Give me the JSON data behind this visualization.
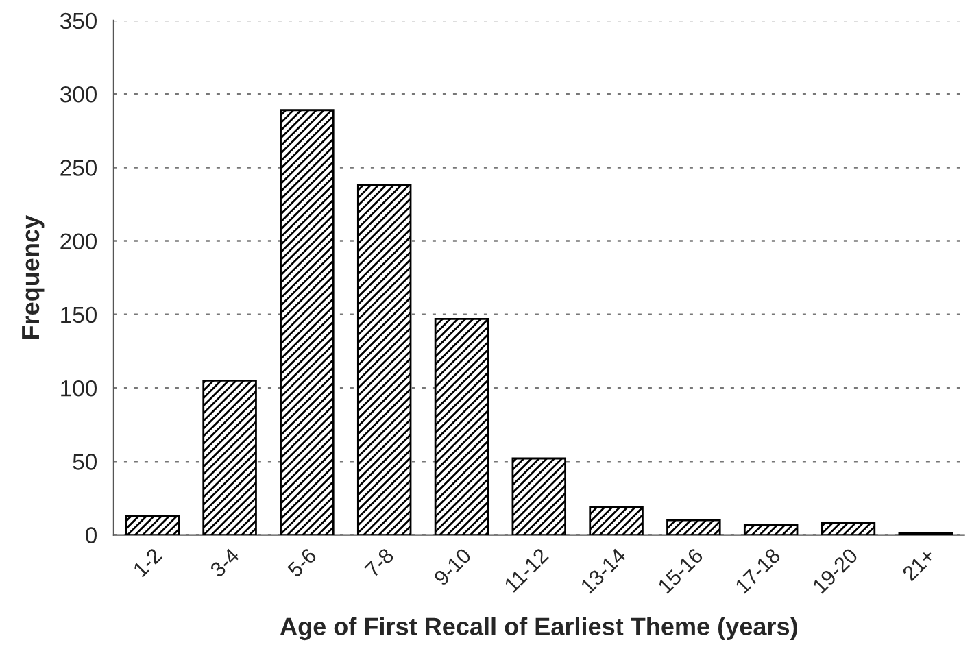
{
  "chart_data": {
    "type": "bar",
    "xlabel": "Age of First Recall of Earliest Theme (years)",
    "ylabel": "Frequency",
    "categories": [
      "1-2",
      "3-4",
      "5-6",
      "7-8",
      "9-10",
      "11-12",
      "13-14",
      "15-16",
      "17-18",
      "19-20",
      "21+"
    ],
    "values": [
      13,
      105,
      289,
      238,
      147,
      52,
      19,
      10,
      7,
      8,
      1
    ],
    "color": "#000000",
    "ylim": [
      0,
      350
    ],
    "yticks": [
      0,
      50,
      100,
      150,
      200,
      250,
      300,
      350
    ],
    "grid": "y"
  }
}
